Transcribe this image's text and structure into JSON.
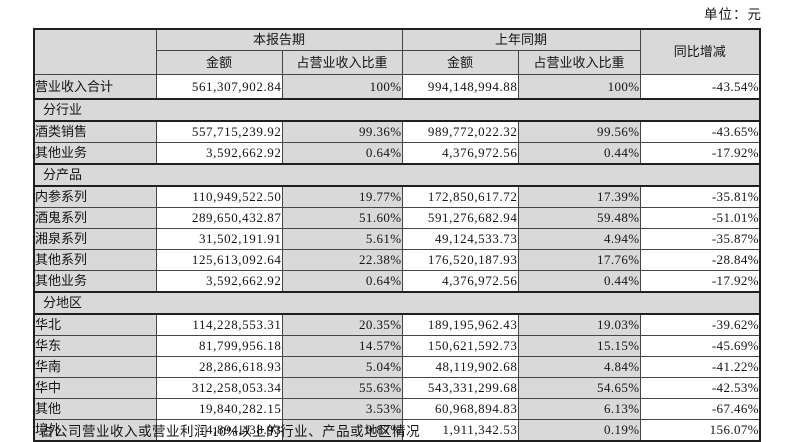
{
  "page": {
    "unit_label": "单位：元",
    "footer_note": "占公司营业收入或营业利润 10%以上的行业、产品或地区情况"
  },
  "table": {
    "header": {
      "current_period": "本报告期",
      "prior_period": "上年同期",
      "yoy": "同比增减",
      "amount": "金额",
      "share": "占营业收入比重"
    },
    "colors": {
      "header_bg": "#d9d9d9",
      "cell_bg": "#ffffff",
      "border": "#1f1f1f"
    },
    "rows": [
      {
        "type": "data",
        "label": "营业收入合计",
        "cur_amount": "561,307,902.84",
        "cur_share": "100%",
        "prior_amount": "994,148,994.88",
        "prior_share": "100%",
        "yoy": "-43.54%"
      },
      {
        "type": "section",
        "label": "分行业"
      },
      {
        "type": "data",
        "label": "酒类销售",
        "cur_amount": "557,715,239.92",
        "cur_share": "99.36%",
        "prior_amount": "989,772,022.32",
        "prior_share": "99.56%",
        "yoy": "-43.65%"
      },
      {
        "type": "data",
        "label": "其他业务",
        "cur_amount": "3,592,662.92",
        "cur_share": "0.64%",
        "prior_amount": "4,376,972.56",
        "prior_share": "0.44%",
        "yoy": "-17.92%"
      },
      {
        "type": "section",
        "label": "分产品"
      },
      {
        "type": "data",
        "label": "内参系列",
        "cur_amount": "110,949,522.50",
        "cur_share": "19.77%",
        "prior_amount": "172,850,617.72",
        "prior_share": "17.39%",
        "yoy": "-35.81%"
      },
      {
        "type": "data",
        "label": "酒鬼系列",
        "cur_amount": "289,650,432.87",
        "cur_share": "51.60%",
        "prior_amount": "591,276,682.94",
        "prior_share": "59.48%",
        "yoy": "-51.01%"
      },
      {
        "type": "data",
        "label": "湘泉系列",
        "cur_amount": "31,502,191.91",
        "cur_share": "5.61%",
        "prior_amount": "49,124,533.73",
        "prior_share": "4.94%",
        "yoy": "-35.87%"
      },
      {
        "type": "data",
        "label": "其他系列",
        "cur_amount": "125,613,092.64",
        "cur_share": "22.38%",
        "prior_amount": "176,520,187.93",
        "prior_share": "17.76%",
        "yoy": "-28.84%"
      },
      {
        "type": "data",
        "label": "其他业务",
        "cur_amount": "3,592,662.92",
        "cur_share": "0.64%",
        "prior_amount": "4,376,972.56",
        "prior_share": "0.44%",
        "yoy": "-17.92%"
      },
      {
        "type": "section",
        "label": "分地区"
      },
      {
        "type": "data",
        "label": "华北",
        "cur_amount": "114,228,553.31",
        "cur_share": "20.35%",
        "prior_amount": "189,195,962.43",
        "prior_share": "19.03%",
        "yoy": "-39.62%"
      },
      {
        "type": "data",
        "label": "华东",
        "cur_amount": "81,799,956.18",
        "cur_share": "14.57%",
        "prior_amount": "150,621,592.73",
        "prior_share": "15.15%",
        "yoy": "-45.69%"
      },
      {
        "type": "data",
        "label": "华南",
        "cur_amount": "28,286,618.93",
        "cur_share": "5.04%",
        "prior_amount": "48,119,902.68",
        "prior_share": "4.84%",
        "yoy": "-41.22%"
      },
      {
        "type": "data",
        "label": "华中",
        "cur_amount": "312,258,053.34",
        "cur_share": "55.63%",
        "prior_amount": "543,331,299.68",
        "prior_share": "54.65%",
        "yoy": "-42.53%"
      },
      {
        "type": "data",
        "label": "其他",
        "cur_amount": "19,840,282.15",
        "cur_share": "3.53%",
        "prior_amount": "60,968,894.83",
        "prior_share": "6.13%",
        "yoy": "-67.46%"
      },
      {
        "type": "data",
        "label": "境外",
        "cur_amount": "4,894,438.93",
        "cur_share": "0.87%",
        "prior_amount": "1,911,342.53",
        "prior_share": "0.19%",
        "yoy": "156.07%"
      }
    ]
  }
}
